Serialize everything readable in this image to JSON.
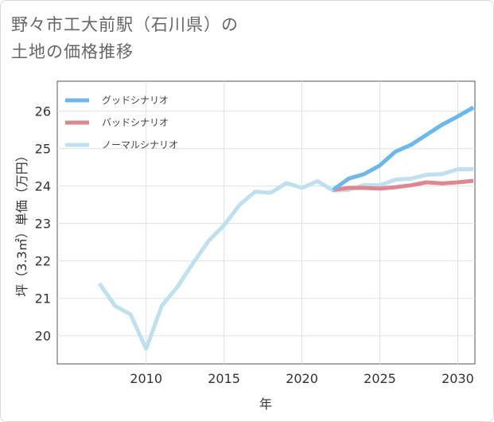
{
  "title_line1": "野々市工大前駅（石川県）の",
  "title_line2": "土地の価格推移",
  "chart_data": {
    "type": "line",
    "title": "野々市工大前駅（石川県）の土地の価格推移",
    "xlabel": "年",
    "ylabel": "坪（3.3㎡）単価（万円）",
    "xlim": [
      2004.3,
      2031.1
    ],
    "ylim": [
      19.25,
      26.8
    ],
    "x_ticks": [
      2010,
      2015,
      2020,
      2025,
      2030
    ],
    "y_ticks": [
      20,
      21,
      22,
      23,
      24,
      25,
      26
    ],
    "grid": true,
    "legend_position": "top-left",
    "series": [
      {
        "name": "グッドシナリオ",
        "color": "#6bb8ee",
        "x": [
          2022,
          2023,
          2024,
          2025,
          2026,
          2027,
          2028,
          2029,
          2030,
          2031
        ],
        "y": [
          23.9,
          24.2,
          24.32,
          24.55,
          24.92,
          25.1,
          25.37,
          25.64,
          25.86,
          26.1
        ]
      },
      {
        "name": "バッドシナリオ",
        "color": "#e0868f",
        "x": [
          2022,
          2023,
          2024,
          2025,
          2026,
          2027,
          2028,
          2029,
          2030,
          2031
        ],
        "y": [
          23.9,
          23.95,
          23.95,
          23.93,
          23.97,
          24.02,
          24.1,
          24.07,
          24.1,
          24.14
        ]
      },
      {
        "name": "ノーマルシナリオ",
        "color": "#bfe0ef",
        "x": [
          2007,
          2008,
          2009,
          2010,
          2011,
          2012,
          2013,
          2014,
          2015,
          2016,
          2017,
          2018,
          2019,
          2020,
          2021,
          2022,
          2023,
          2024,
          2025,
          2026,
          2027,
          2028,
          2029,
          2030,
          2031
        ],
        "y": [
          21.4,
          20.8,
          20.57,
          19.65,
          20.8,
          21.3,
          21.93,
          22.53,
          22.95,
          23.5,
          23.85,
          23.82,
          24.08,
          23.95,
          24.13,
          23.88,
          23.9,
          24.03,
          24.02,
          24.17,
          24.2,
          24.3,
          24.32,
          24.45,
          24.45
        ]
      }
    ]
  }
}
